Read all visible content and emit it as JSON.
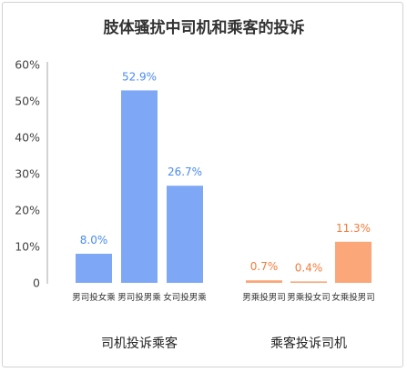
{
  "chart_data": {
    "type": "bar",
    "title": "肢体骚扰中司机和乘客的投诉",
    "ylim": [
      0,
      60
    ],
    "yticks": [
      "0",
      "10%",
      "20%",
      "30%",
      "40%",
      "50%",
      "60%"
    ],
    "grid": false,
    "groups": [
      {
        "label": "司机投诉乘客",
        "color": "#7ea8f5",
        "label_color": "#4c8bf0",
        "bars": [
          {
            "category": "男司投女乘",
            "value": 8.0,
            "label": "8.0%"
          },
          {
            "category": "男司投男乘",
            "value": 52.9,
            "label": "52.9%"
          },
          {
            "category": "女司投男乘",
            "value": 26.7,
            "label": "26.7%"
          }
        ]
      },
      {
        "label": "乘客投诉司机",
        "color": "#fba77a",
        "label_color": "#f47c3c",
        "bars": [
          {
            "category": "男乘投男司",
            "value": 0.7,
            "label": "0.7%"
          },
          {
            "category": "男乘投女司",
            "value": 0.4,
            "label": "0.4%"
          },
          {
            "category": "女乘投男司",
            "value": 11.3,
            "label": "11.3%"
          }
        ]
      }
    ]
  }
}
